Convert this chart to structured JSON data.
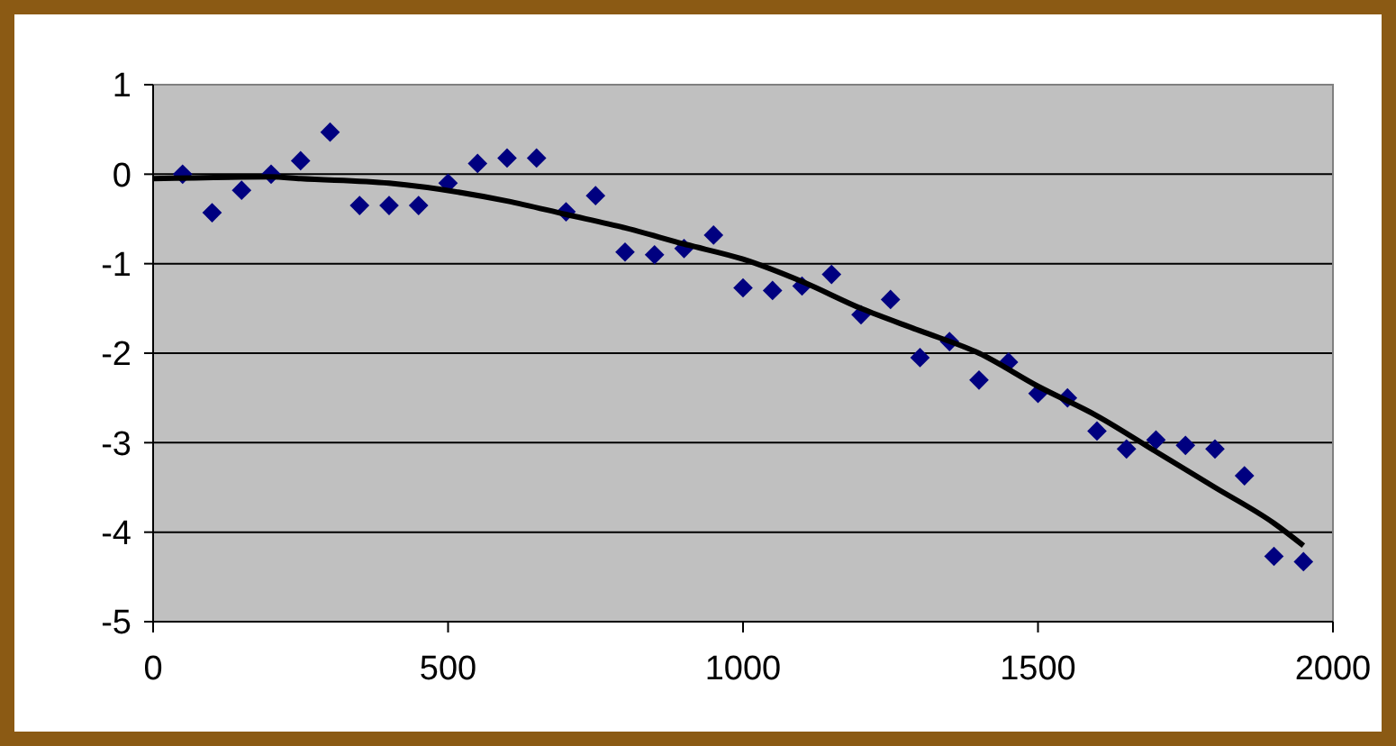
{
  "chart_data": {
    "type": "scatter",
    "marker": "diamond",
    "grid": "y",
    "xlim": [
      0,
      2000
    ],
    "xticks": [
      0,
      500,
      1000,
      1500,
      2000
    ],
    "ylim": [
      -5,
      1
    ],
    "yticks": [
      -5,
      -4,
      -3,
      -2,
      -1,
      0,
      1
    ],
    "series": [
      {
        "color": "#000080",
        "x": [
          50,
          100,
          150,
          200,
          250,
          300,
          350,
          400,
          450,
          500,
          550,
          600,
          650,
          700,
          750,
          800,
          850,
          900,
          950,
          1000,
          1050,
          1100,
          1150,
          1200,
          1250,
          1300,
          1350,
          1400,
          1450,
          1500,
          1550,
          1600,
          1650,
          1700,
          1750,
          1800,
          1850,
          1900,
          1950
        ],
        "values": [
          0,
          -0.43,
          -0.18,
          0,
          0.15,
          0.47,
          -0.35,
          -0.35,
          -0.35,
          -0.1,
          0.12,
          0.18,
          0.18,
          -0.42,
          -0.24,
          -0.87,
          -0.9,
          -0.83,
          -0.68,
          -1.27,
          -1.3,
          -1.25,
          -1.12,
          -1.57,
          -1.4,
          -2.05,
          -1.87,
          -2.3,
          -2.1,
          -2.45,
          -2.5,
          -2.87,
          -3.07,
          -2.97,
          -3.03,
          -3.07,
          -3.37,
          -4.27,
          -4.33
        ]
      },
      {
        "type": "line",
        "color": "#000000",
        "marker": "none",
        "line_style": "solid",
        "x": [
          0,
          200,
          250,
          400,
          600,
          700,
          800,
          900,
          1000,
          1100,
          1200,
          1300,
          1400,
          1500,
          1600,
          1700,
          1800,
          1900,
          1950
        ],
        "values": [
          -0.05,
          -0.03,
          -0.05,
          -0.1,
          -0.3,
          -0.45,
          -0.6,
          -0.78,
          -0.95,
          -1.2,
          -1.5,
          -1.75,
          -2.0,
          -2.37,
          -2.7,
          -3.1,
          -3.5,
          -3.9,
          -4.15
        ]
      }
    ]
  }
}
